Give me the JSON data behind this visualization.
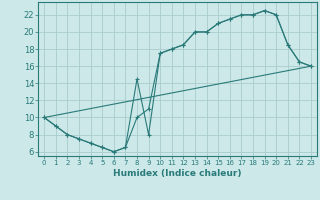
{
  "xlabel": "Humidex (Indice chaleur)",
  "background_color": "#cce8e8",
  "grid_color": "#aacccc",
  "line_color": "#2a7a7a",
  "xlim": [
    -0.5,
    23.5
  ],
  "ylim": [
    5.5,
    23.5
  ],
  "xticks": [
    0,
    1,
    2,
    3,
    4,
    5,
    6,
    7,
    8,
    9,
    10,
    11,
    12,
    13,
    14,
    15,
    16,
    17,
    18,
    19,
    20,
    21,
    22,
    23
  ],
  "yticks": [
    6,
    8,
    10,
    12,
    14,
    16,
    18,
    20,
    22
  ],
  "line1_x": [
    0,
    1,
    2,
    3,
    4,
    5,
    6,
    7,
    8,
    9,
    10,
    11,
    12,
    13,
    14,
    15,
    16,
    17,
    18,
    19,
    20,
    21,
    22,
    23
  ],
  "line1_y": [
    10,
    9,
    8,
    7.5,
    7,
    6.5,
    6,
    6.5,
    10,
    11,
    17.5,
    18,
    18.5,
    20,
    20,
    21,
    21.5,
    22,
    22,
    22.5,
    22,
    18.5,
    16.5,
    16
  ],
  "line2_x": [
    0,
    1,
    2,
    3,
    4,
    5,
    6,
    7,
    8,
    9,
    10,
    11,
    12,
    13,
    14,
    15,
    16,
    17,
    18,
    19,
    20,
    21,
    22,
    23
  ],
  "line2_y": [
    10,
    9,
    8,
    7.5,
    7,
    6.5,
    6,
    6.5,
    14.5,
    8,
    17.5,
    18,
    18.5,
    20,
    20,
    21,
    21.5,
    22,
    22,
    22.5,
    22,
    18.5,
    16.5,
    16
  ],
  "line3_x": [
    0,
    23
  ],
  "line3_y": [
    10,
    16
  ]
}
